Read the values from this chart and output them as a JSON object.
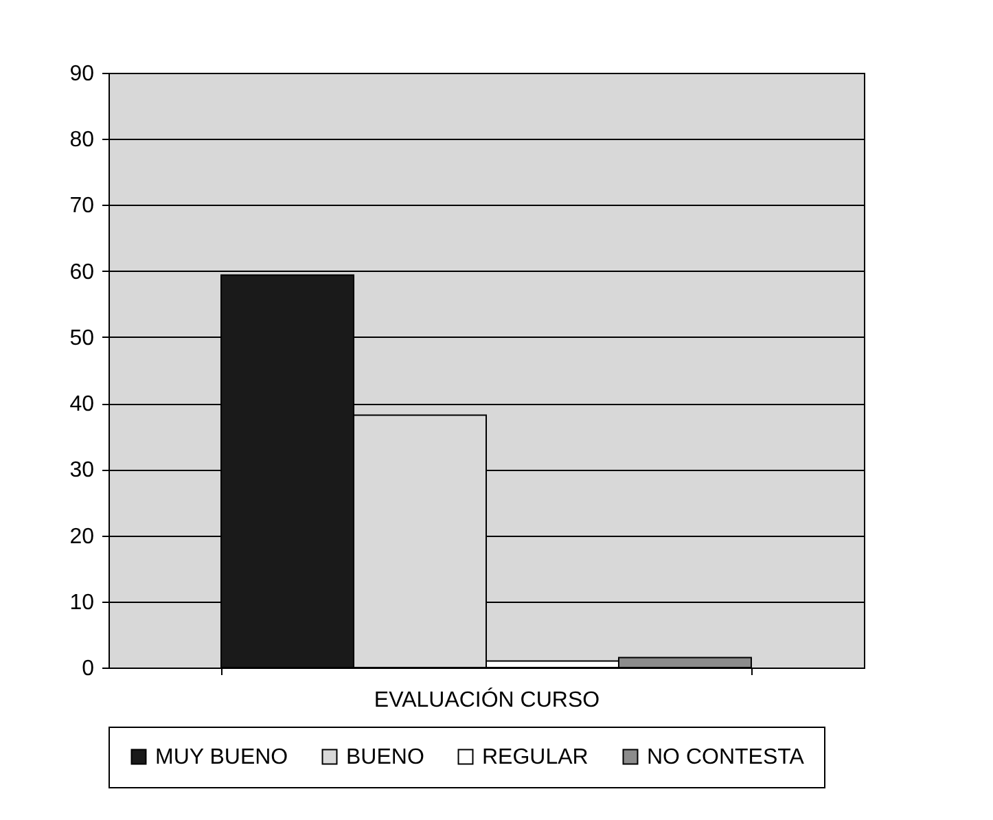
{
  "chart_data": {
    "type": "bar",
    "categories": [
      "EVALUACIÓN CURSO"
    ],
    "series": [
      {
        "name": "MUY BUENO",
        "color": "#1a1a1a",
        "values": [
          59.4
        ]
      },
      {
        "name": "BUENO",
        "color": "#d9d9d9",
        "values": [
          38.2
        ]
      },
      {
        "name": "REGULAR",
        "color": "#ffffff",
        "values": [
          1.0
        ]
      },
      {
        "name": "NO CONTESTA",
        "color": "#8c8c8c",
        "values": [
          1.5
        ]
      }
    ],
    "ylim": [
      0,
      90
    ],
    "yticks": [
      0,
      10,
      20,
      30,
      40,
      50,
      60,
      70,
      80,
      90
    ],
    "grid": "y",
    "legend": "bottom"
  }
}
